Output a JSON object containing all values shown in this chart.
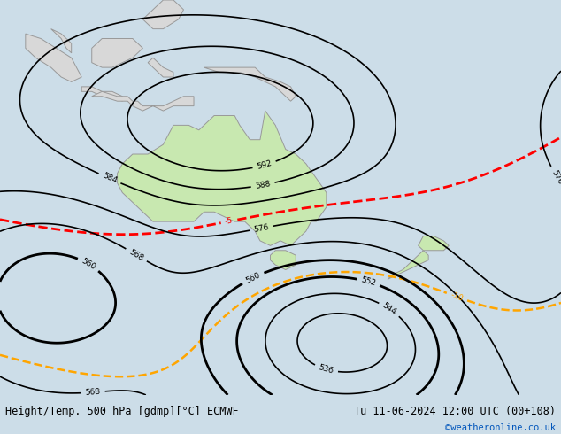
{
  "title_left": "Height/Temp. 500 hPa [gdmp][°C] ECMWF",
  "title_right": "Tu 11-06-2024 12:00 UTC (00+108)",
  "credit": "©weatheronline.co.uk",
  "background_color": "#ccdde8",
  "land_color": "#d8d8d8",
  "australia_fill": "#c8e8b0",
  "bottom_bar_color": "#d8d8d8",
  "fig_width": 6.34,
  "fig_height": 4.9,
  "dpi": 100,
  "lon_min": 90,
  "lon_max": 200,
  "lat_min": -70,
  "lat_max": 12
}
